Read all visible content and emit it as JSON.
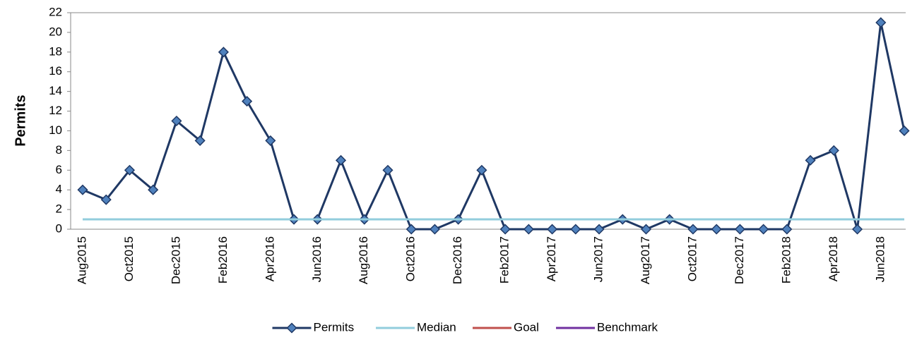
{
  "chart_data": {
    "type": "line",
    "y_label": "Permits",
    "categories": [
      "Aug2015",
      null,
      "Oct2015",
      null,
      "Dec2015",
      null,
      "Feb2016",
      null,
      "Apr2016",
      null,
      "Jun2016",
      null,
      "Aug2016",
      null,
      "Oct2016",
      null,
      "Dec2016",
      null,
      "Feb2017",
      null,
      "Apr2017",
      null,
      "Jun2017",
      null,
      "Aug2017",
      null,
      "Oct2017",
      null,
      "Dec2017",
      null,
      "Feb2018",
      null,
      "Apr2018",
      null,
      "Jun2018",
      null
    ],
    "series": [
      {
        "name": "Permits",
        "color": "#1f3864",
        "marker": "diamond",
        "marker_color": "#4f81bd",
        "values": [
          4,
          3,
          6,
          4,
          11,
          9,
          18,
          13,
          9,
          1,
          1,
          7,
          1,
          6,
          0,
          0,
          1,
          6,
          0,
          0,
          0,
          0,
          0,
          1,
          0,
          1,
          0,
          0,
          0,
          0,
          0,
          7,
          8,
          0,
          21,
          10
        ]
      },
      {
        "name": "Median",
        "color": "#92cddc",
        "values": [
          1,
          1,
          1,
          1,
          1,
          1,
          1,
          1,
          1,
          1,
          1,
          1,
          1,
          1,
          1,
          1,
          1,
          1,
          1,
          1,
          1,
          1,
          1,
          1,
          1,
          1,
          1,
          1,
          1,
          1,
          1,
          1,
          1,
          1,
          1,
          1
        ]
      },
      {
        "name": "Goal",
        "color": "#c0504d",
        "values": [
          null,
          null,
          null,
          null,
          null,
          null,
          null,
          null,
          null,
          null,
          null,
          null,
          null,
          null,
          null,
          null,
          null,
          null,
          null,
          null,
          null,
          null,
          null,
          null,
          null,
          null,
          null,
          null,
          null,
          null,
          null,
          null,
          null,
          null,
          null,
          null
        ]
      },
      {
        "name": "Benchmark",
        "color": "#7030a0",
        "values": [
          null,
          null,
          null,
          null,
          null,
          null,
          null,
          null,
          null,
          null,
          null,
          null,
          null,
          null,
          null,
          null,
          null,
          null,
          null,
          null,
          null,
          null,
          null,
          null,
          null,
          null,
          null,
          null,
          null,
          null,
          null,
          null,
          null,
          null,
          null,
          null
        ]
      }
    ],
    "ylim": [
      0,
      22
    ],
    "yticks": [
      0,
      2,
      4,
      6,
      8,
      10,
      12,
      14,
      16,
      18,
      20,
      22
    ],
    "grid": false,
    "legend": "bottom"
  }
}
